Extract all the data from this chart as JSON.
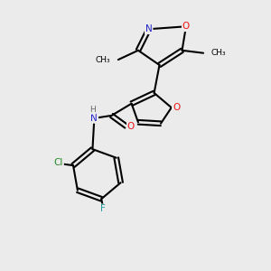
{
  "bg_color": "#ebebeb",
  "bond_color": "#000000",
  "bond_width": 1.5,
  "atom_colors": {
    "O": "#ee1111",
    "N": "#2222cc",
    "Cl": "#228822",
    "F": "#229999",
    "C": "#000000",
    "H": "#666666"
  },
  "figsize": [
    3.0,
    3.0
  ],
  "dpi": 100
}
